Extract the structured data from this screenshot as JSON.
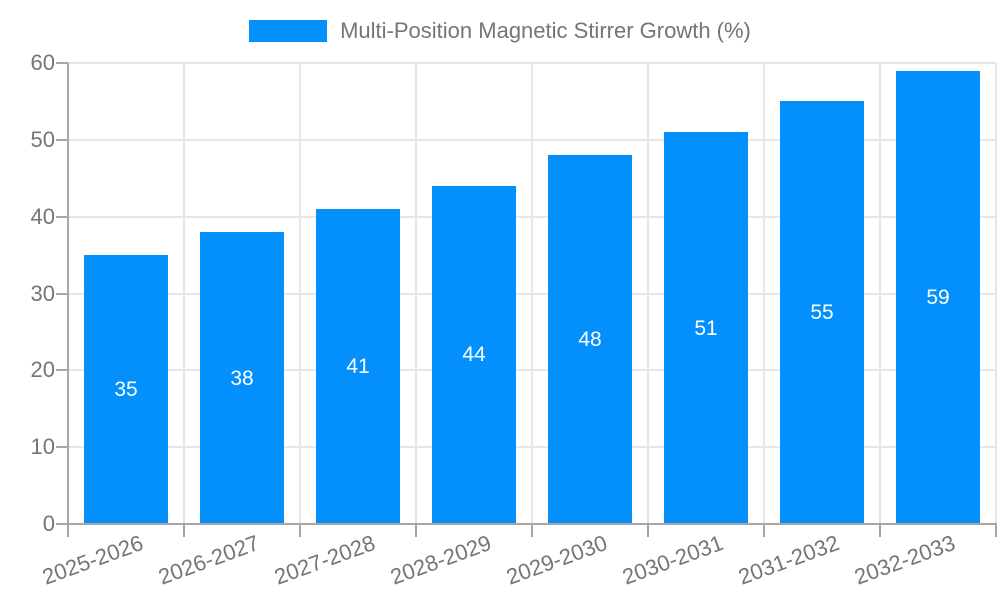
{
  "legend": {
    "label": "Multi-Position Magnetic Stirrer Growth (%)"
  },
  "chart_data": {
    "type": "bar",
    "title": "Multi-Position Magnetic Stirrer Growth (%)",
    "categories": [
      "2025-2026",
      "2026-2027",
      "2027-2028",
      "2028-2029",
      "2029-2030",
      "2030-2031",
      "2031-2032",
      "2032-2033"
    ],
    "values": [
      35,
      38,
      41,
      44,
      48,
      51,
      55,
      59
    ],
    "xlabel": "",
    "ylabel": "",
    "ylim": [
      0,
      60
    ],
    "yticks": [
      0,
      10,
      20,
      30,
      40,
      50,
      60
    ],
    "grid": true,
    "legend_position": "top",
    "bar_labels_inside": true,
    "x_label_rotation_deg": -20,
    "colors": {
      "bar": "#0390fc",
      "grid": "#e6e6e6",
      "axis": "#a6a6a6",
      "tick_text": "#757575",
      "bar_label_text": "#ffffff",
      "background": "#ffffff"
    }
  }
}
